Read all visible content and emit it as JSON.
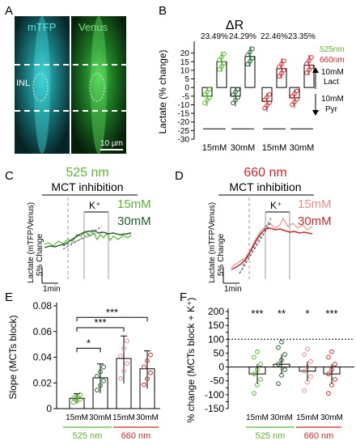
{
  "panel_labels": [
    "A",
    "B",
    "C",
    "D",
    "E",
    "F"
  ],
  "colors": {
    "green_525": "#5ab532",
    "dark_green": "#1f5d2a",
    "red_660": "#c92a2a",
    "light_red": "#e88f8f",
    "cyan": "#2bc3c7",
    "venus_green": "#4fd04f"
  },
  "panel_a": {
    "channel_left": "mTFP",
    "channel_right": "Venus",
    "region_label": "INL",
    "scale_bar": "10 µm"
  },
  "panel_b": {
    "title": "ΔR",
    "legend": {
      "green": "525nm",
      "red": "660nm"
    },
    "arrow_up_label": [
      "10mM",
      "Lact"
    ],
    "arrow_down_label": [
      "10mM",
      "Pyr"
    ]
  },
  "panel_c": {
    "title": "525 nm",
    "subtitle": "MCT inhibition",
    "k_label": "K⁺",
    "series": [
      "15mM",
      "30mM"
    ],
    "ylabel": [
      "Lactate (mTFP/Venus)",
      "5% Change"
    ],
    "scale_x": "1min"
  },
  "panel_d": {
    "title": "660 nm",
    "subtitle": "MCT inhibition",
    "k_label": "K⁺",
    "series": [
      "15mM",
      "30mM"
    ],
    "ylabel": [
      "Lactate (mTFP/Venus)",
      "5% Change"
    ],
    "scale_x": "1min"
  },
  "group_labels": {
    "wl_525": "525 nm",
    "wl_660": "660 nm"
  },
  "chart_data": [
    {
      "id": "B",
      "type": "bar",
      "ylabel": "Lactate (% change)",
      "ylim": [
        -30,
        25
      ],
      "yticks": [
        -30,
        -25,
        -20,
        -15,
        -10,
        -5,
        0,
        5,
        10,
        15,
        20
      ],
      "categories": [
        "15mM",
        "30mM",
        "15mM",
        "30mM"
      ],
      "percent_labels": [
        "23.49%",
        "24.29%",
        "22.46%",
        "23.35%"
      ],
      "series": [
        {
          "name": "10mM Pyr",
          "values": [
            -5,
            -5,
            -8,
            -6
          ]
        },
        {
          "name": "10mM Lact",
          "values": [
            15,
            18,
            11,
            13
          ]
        }
      ]
    },
    {
      "id": "E",
      "type": "bar",
      "ylabel": "Slope (MCTs block)",
      "ylim": [
        0,
        0.08
      ],
      "yticks": [
        0,
        0.02,
        0.04,
        0.06,
        0.08
      ],
      "categories": [
        "15mM",
        "30mM",
        "15mM",
        "30mM"
      ],
      "values": [
        0.008,
        0.024,
        0.039,
        0.031
      ],
      "significance": [
        {
          "from": 0,
          "to": 1,
          "label": "*"
        },
        {
          "from": 0,
          "to": 2,
          "label": "***"
        },
        {
          "from": 0,
          "to": 3,
          "label": "***"
        }
      ]
    },
    {
      "id": "F",
      "type": "bar",
      "ylabel": "% change (MCTs block + K⁺)",
      "ylim": [
        -150,
        200
      ],
      "yticks": [
        -150,
        -125,
        -100,
        -75,
        -50,
        -25,
        0,
        25,
        50,
        75,
        100,
        125,
        150,
        175,
        200
      ],
      "categories": [
        "15mM",
        "30mM",
        "15mM",
        "30mM"
      ],
      "values": [
        -25,
        10,
        -15,
        -25
      ],
      "stars": [
        "***",
        "**",
        "*",
        "***"
      ],
      "reference_line": 100
    }
  ]
}
